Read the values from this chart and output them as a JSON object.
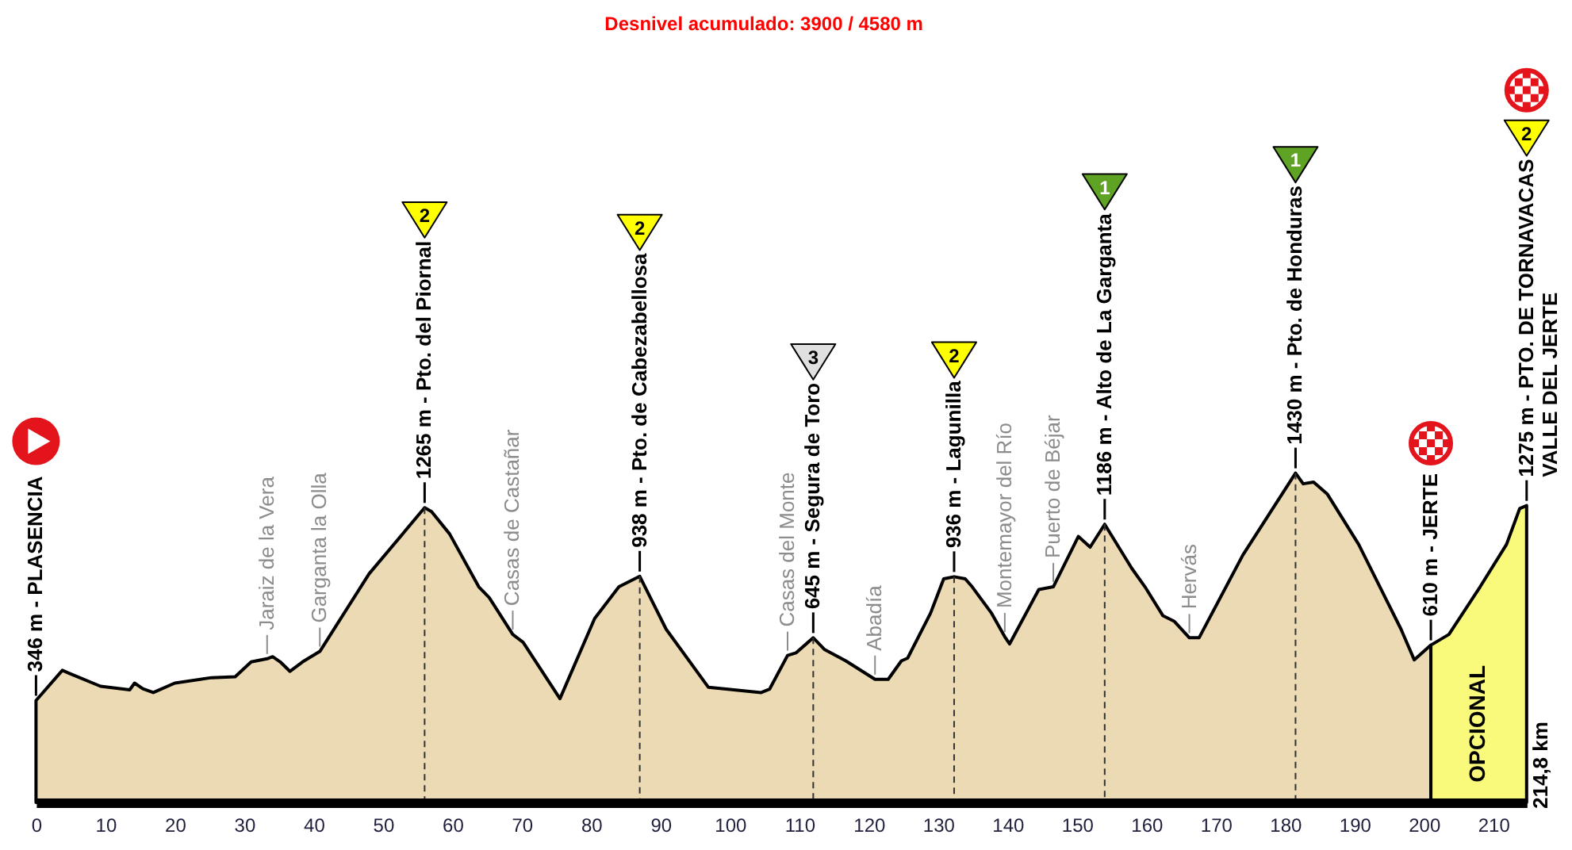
{
  "chart_data": {
    "type": "area",
    "title": "Desnivel acumulado: 3900 / 4580 m",
    "xlim": [
      0,
      214.8
    ],
    "xticks": [
      0,
      10,
      20,
      30,
      40,
      50,
      60,
      70,
      80,
      90,
      100,
      110,
      120,
      130,
      140,
      150,
      160,
      170,
      180,
      190,
      200,
      210
    ],
    "tick_labels": "x",
    "series": [
      {
        "color": "#ebdab3",
        "x": [
          0,
          3.8,
          4.7,
          9.3,
          13.5,
          14.2,
          15.4,
          16.9,
          20,
          25.3,
          28.7,
          31,
          33.3,
          34.1,
          35.2,
          36.6,
          38.4,
          40.9,
          48,
          56,
          57,
          59.6,
          63.8,
          65.3,
          68.7,
          70.2,
          75.5,
          80.5,
          84,
          87,
          90.8,
          96.9,
          104.5,
          105.7,
          108.3,
          109.5,
          112,
          113.6,
          116.7,
          120.9,
          122.8,
          124.7,
          125.6,
          128.9,
          130.8,
          132.3,
          133.9,
          134.9,
          137.7,
          139.6,
          140.3,
          144.5,
          146.6,
          150.2,
          151.9,
          154,
          157.9,
          159.8,
          162.4,
          164,
          166.2,
          167.6,
          173.9,
          181.5,
          182.6,
          184.1,
          186.1,
          190.6,
          196.7,
          198.6,
          201
        ],
        "values": [
          346,
          490,
          477,
          414,
          397,
          429,
          402,
          384,
          429,
          455,
          459,
          530,
          545,
          555,
          530,
          485,
          530,
          580,
          950,
          1265,
          1246,
          1140,
          888,
          837,
          661,
          623,
          355,
          737,
          888,
          938,
          686,
          409,
          384,
          400,
          561,
          573,
          645,
          590,
          535,
          447,
          447,
          535,
          548,
          762,
          926,
          936,
          926,
          888,
          762,
          650,
          616,
          875,
          888,
          1128,
          1077,
          1186,
          976,
          888,
          750,
          724,
          645,
          645,
          1039,
          1430,
          1379,
          1387,
          1329,
          1090,
          686,
          540,
          610
        ],
        "value_labels": [
          "346 m - PLASENCIA",
          null,
          null,
          null,
          null,
          null,
          null,
          null,
          null,
          null,
          null,
          null,
          null,
          null,
          null,
          null,
          null,
          null,
          null,
          "1265 m - Pto. del Piornal",
          null,
          null,
          null,
          null,
          null,
          null,
          null,
          null,
          null,
          "938 m - Pto. de Cabezabellosa",
          null,
          null,
          null,
          null,
          null,
          null,
          "645 m - Segura de Toro",
          null,
          null,
          null,
          null,
          null,
          null,
          null,
          null,
          "936 m - Lagunilla",
          null,
          null,
          null,
          null,
          null,
          null,
          null,
          null,
          null,
          "1186 m - Alto de La Garganta",
          null,
          null,
          null,
          null,
          null,
          null,
          null,
          "1430 m - Pto. de Honduras",
          null,
          null,
          null,
          null,
          null,
          null,
          "610 m - JERTE"
        ]
      },
      {
        "name": "OPCIONAL",
        "color": "#f9f97c",
        "x": [
          201,
          203.6,
          208.1,
          211.9,
          213.8,
          214.8
        ],
        "values": [
          610,
          661,
          888,
          1090,
          1261,
          1275
        ],
        "value_labels": [
          null,
          null,
          null,
          null,
          null,
          "1275 m - PTO. DE TORNAVACAS\nVALLE DEL JERTE"
        ]
      }
    ],
    "annotations": [
      {
        "text": "Jaraiz de la Vera",
        "x": 33.3,
        "y": 545
      },
      {
        "text": "Garganta la Olla",
        "x": 40.9,
        "y": 580
      },
      {
        "text": "Casas de Castañar",
        "x": 68.7,
        "y": 661
      },
      {
        "text": "Casas del Monte",
        "x": 108.3,
        "y": 561
      },
      {
        "text": "Abadía",
        "x": 120.9,
        "y": 447
      },
      {
        "text": "Montemayor del Río",
        "x": 139.6,
        "y": 650
      },
      {
        "text": "Puerto de Béjar",
        "x": 146.6,
        "y": 888
      },
      {
        "text": "Hervás",
        "x": 166.2,
        "y": 645
      },
      "2",
      "2",
      "3",
      "2",
      "1",
      "1",
      "2",
      "214,8 km"
    ],
    "ref_lines": [
      {
        "axis": "x",
        "value": 56,
        "line_style": "dashed",
        "color": "#333333"
      },
      {
        "axis": "x",
        "value": 87,
        "line_style": "dashed",
        "color": "#333333"
      },
      {
        "axis": "x",
        "value": 112,
        "line_style": "dashed",
        "color": "#333333"
      },
      {
        "axis": "x",
        "value": 132.3,
        "line_style": "dashed",
        "color": "#333333"
      },
      {
        "axis": "x",
        "value": 154,
        "line_style": "dashed",
        "color": "#333333"
      },
      {
        "axis": "x",
        "value": 181.5,
        "line_style": "dashed",
        "color": "#333333"
      }
    ]
  }
}
